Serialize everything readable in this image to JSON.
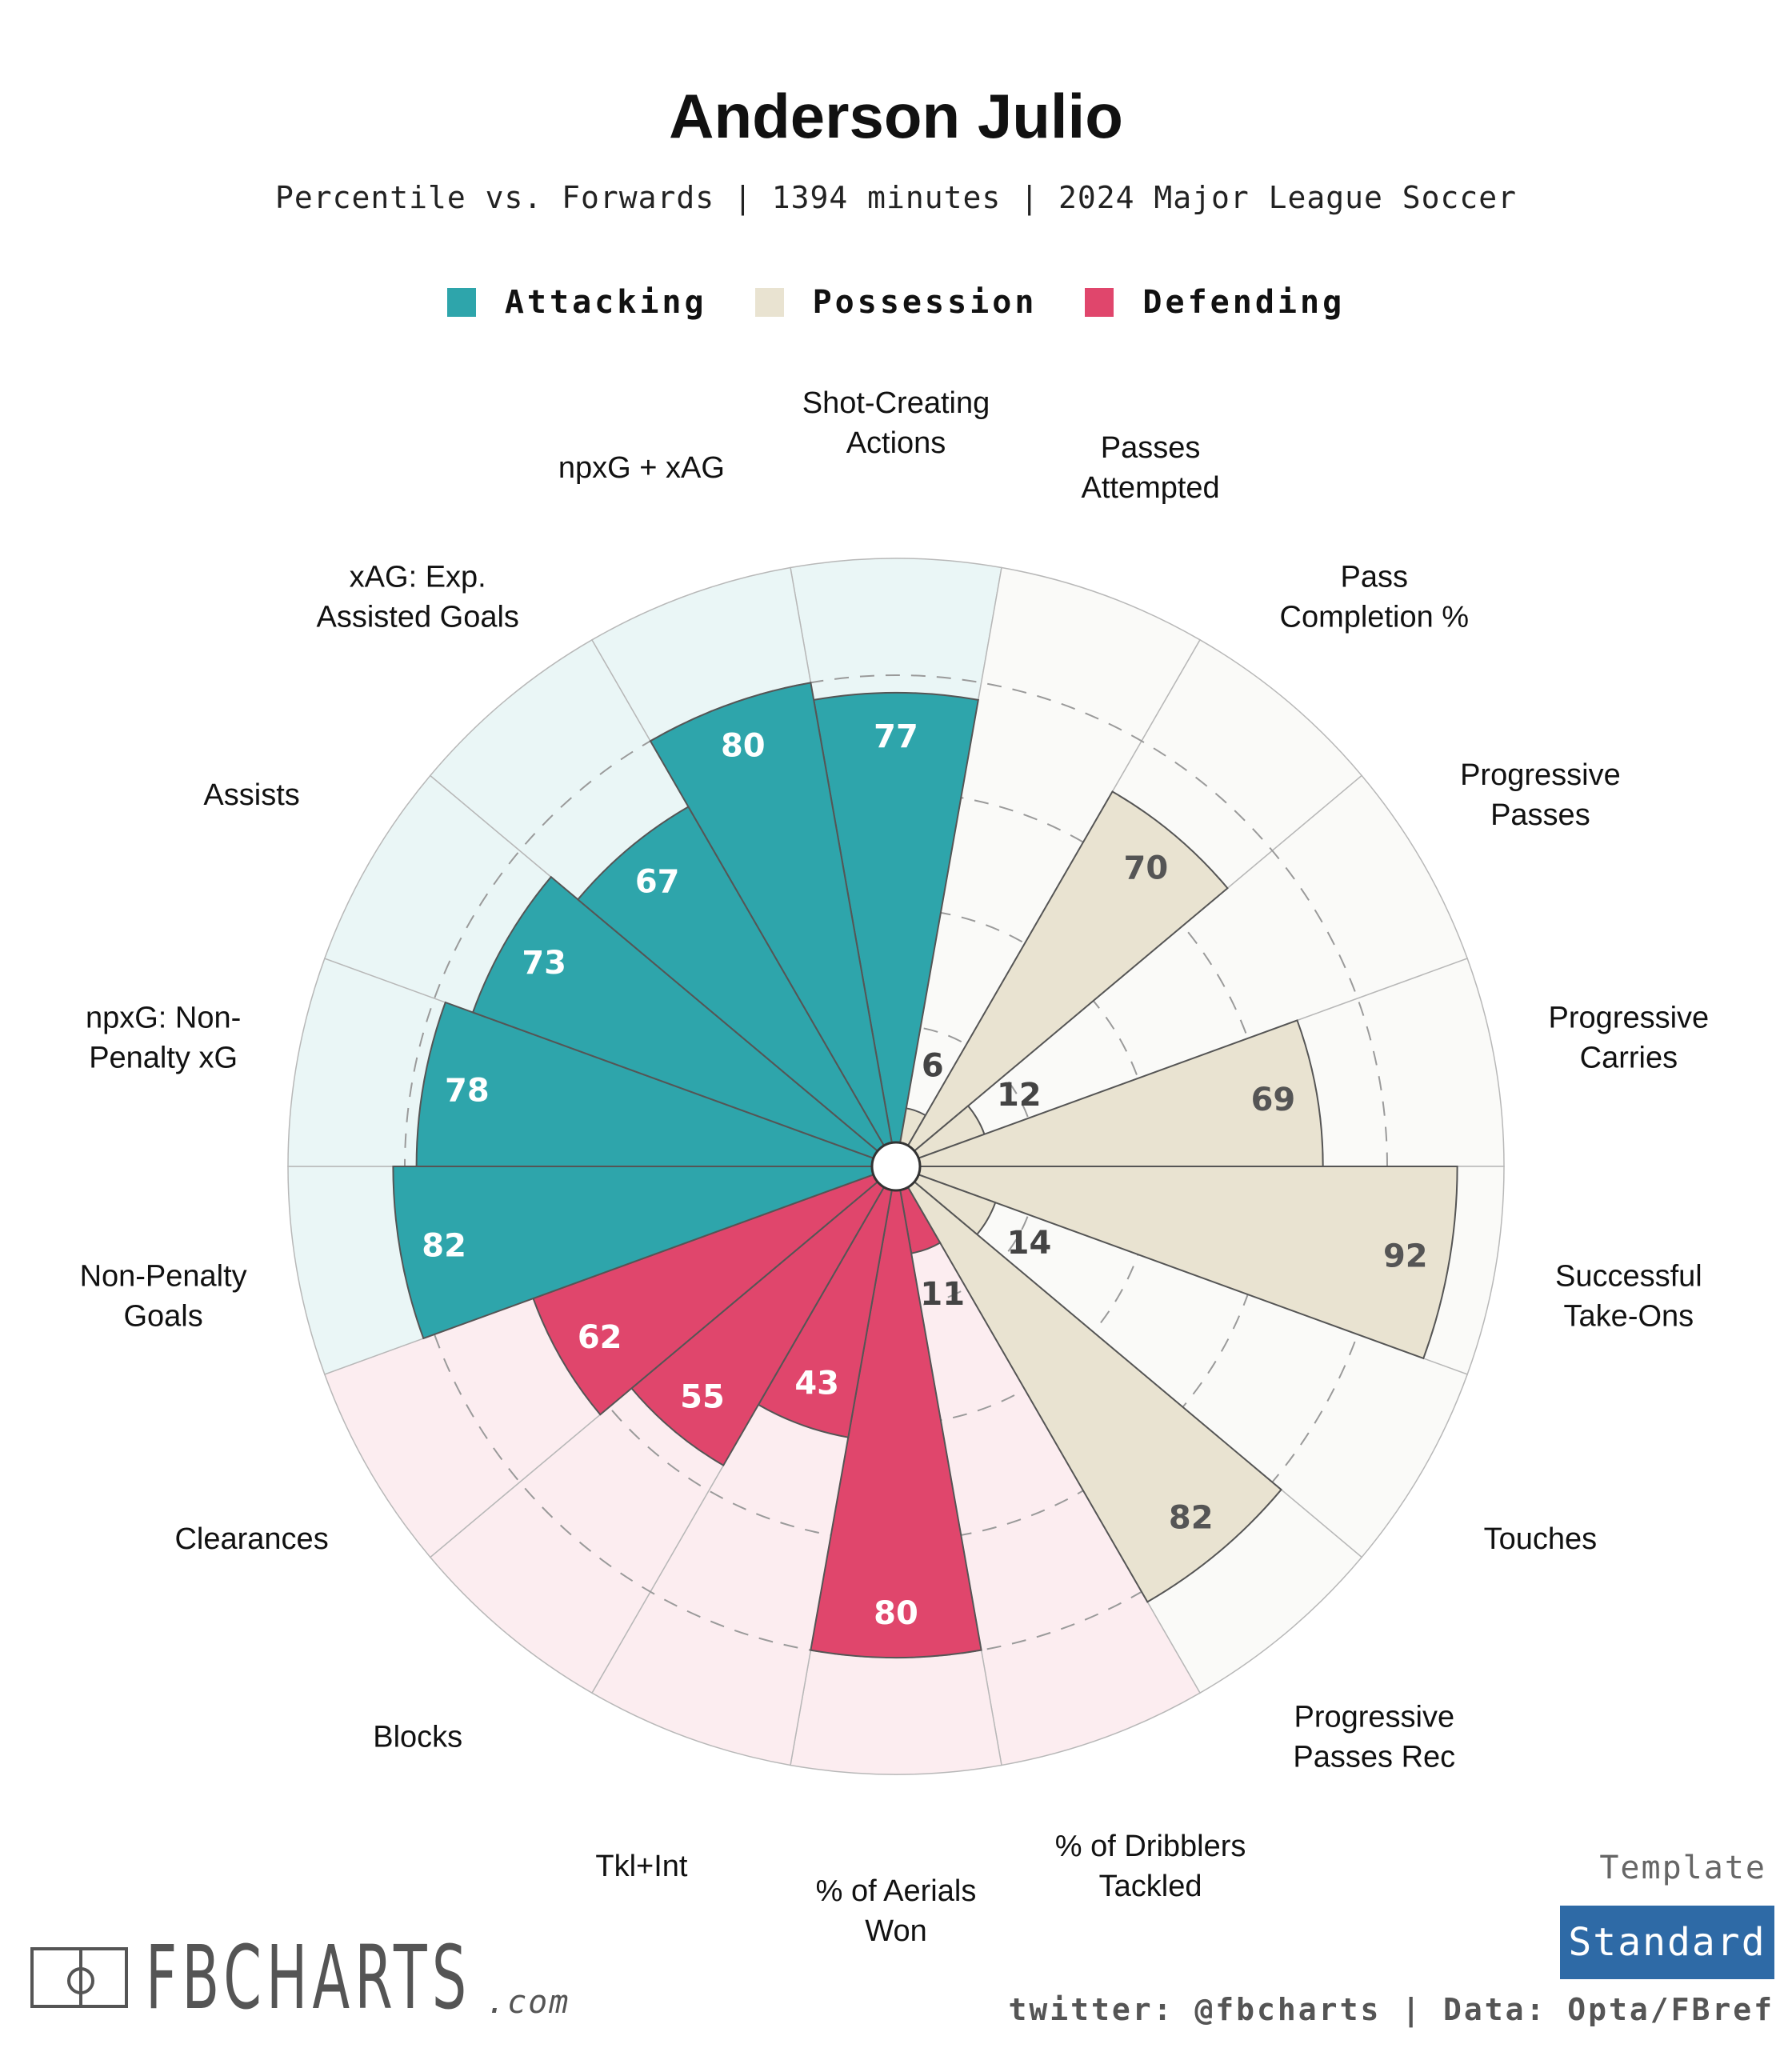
{
  "header": {
    "title": "Anderson Julio",
    "subtitle": "Percentile vs. Forwards | 1394 minutes | 2024 Major League Soccer"
  },
  "legend": [
    {
      "label": "Attacking",
      "color": "#2ea5ab"
    },
    {
      "label": "Possession",
      "color": "#e9e3d1"
    },
    {
      "label": "Defending",
      "color": "#e0466c"
    }
  ],
  "colors": {
    "attacking": "#2ea5ab",
    "attacking_bg": "#eaf6f6",
    "possession": "#e9e3d1",
    "possession_bg": "#fafaf8",
    "defending": "#e0466c",
    "defending_bg": "#fcedf0"
  },
  "chart_data": {
    "type": "radial-bar",
    "title": "Anderson Julio",
    "subtitle": "Percentile vs. Forwards | 1394 minutes | 2024 Major League Soccer",
    "rlim": [
      0,
      100
    ],
    "gridlines": [
      20,
      40,
      60,
      80
    ],
    "legend_position": "top-center",
    "metrics": [
      {
        "label": "Shot-Creating Actions",
        "value": 77,
        "group": "Attacking"
      },
      {
        "label": "Passes Attempted",
        "value": 6,
        "group": "Possession"
      },
      {
        "label": "Pass Completion %",
        "value": 70,
        "group": "Possession"
      },
      {
        "label": "Progressive Passes",
        "value": 12,
        "group": "Possession"
      },
      {
        "label": "Progressive Carries",
        "value": 69,
        "group": "Possession"
      },
      {
        "label": "Successful Take-Ons",
        "value": 92,
        "group": "Possession"
      },
      {
        "label": "Touches",
        "value": 14,
        "group": "Possession"
      },
      {
        "label": "Progressive Passes Rec",
        "value": 82,
        "group": "Possession"
      },
      {
        "label": "% of Dribblers Tackled",
        "value": 11,
        "group": "Defending"
      },
      {
        "label": "% of Aerials Won",
        "value": 80,
        "group": "Defending"
      },
      {
        "label": "Tkl+Int",
        "value": 43,
        "group": "Defending"
      },
      {
        "label": "Blocks",
        "value": 55,
        "group": "Defending"
      },
      {
        "label": "Clearances",
        "value": 62,
        "group": "Defending"
      },
      {
        "label": "Non-Penalty Goals",
        "value": 82,
        "group": "Attacking"
      },
      {
        "label": "npxG: Non-Penalty xG",
        "value": 78,
        "group": "Attacking"
      },
      {
        "label": "Assists",
        "value": 73,
        "group": "Attacking"
      },
      {
        "label": "xAG: Exp. Assisted Goals",
        "value": 67,
        "group": "Attacking"
      },
      {
        "label": "npxG + xAG",
        "value": 80,
        "group": "Attacking"
      }
    ]
  },
  "branding": {
    "logo_text": "FBCHARTS",
    "logo_suffix": ".com",
    "template_label": "Template",
    "template_value": "Standard",
    "footer": "twitter: @fbcharts | Data: Opta/FBref"
  }
}
